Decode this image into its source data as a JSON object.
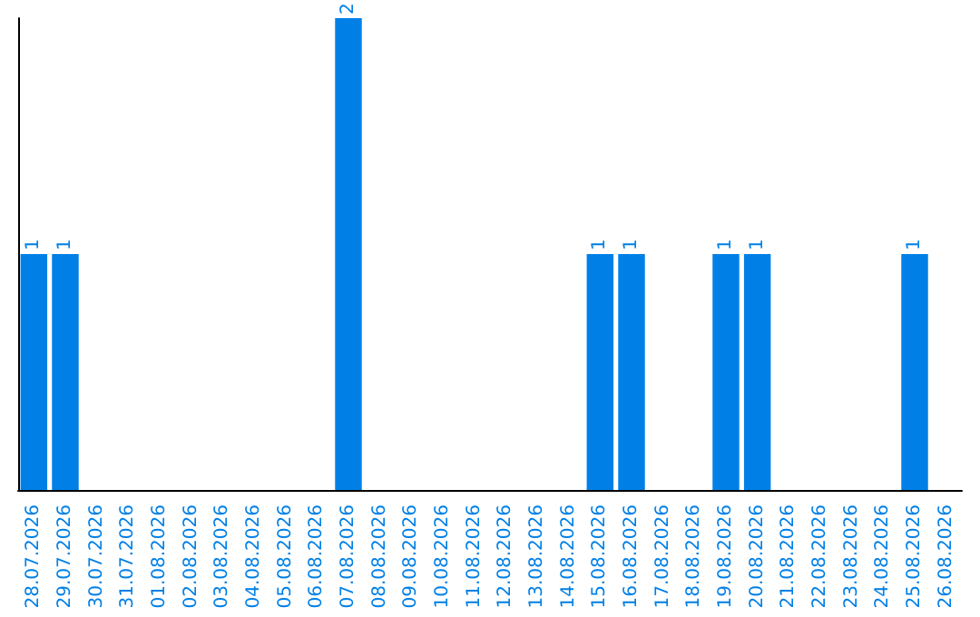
{
  "chart_data": {
    "type": "bar",
    "categories": [
      "28.07.2026",
      "29.07.2026",
      "30.07.2026",
      "31.07.2026",
      "01.08.2026",
      "02.08.2026",
      "03.08.2026",
      "04.08.2026",
      "05.08.2026",
      "06.08.2026",
      "07.08.2026",
      "08.08.2026",
      "09.08.2026",
      "10.08.2026",
      "11.08.2026",
      "12.08.2026",
      "13.08.2026",
      "14.08.2026",
      "15.08.2026",
      "16.08.2026",
      "17.08.2026",
      "18.08.2026",
      "19.08.2026",
      "20.08.2026",
      "21.08.2026",
      "22.08.2026",
      "23.08.2026",
      "24.08.2026",
      "25.08.2026",
      "26.08.2026"
    ],
    "values": [
      1,
      1,
      0,
      0,
      0,
      0,
      0,
      0,
      0,
      0,
      2,
      0,
      0,
      0,
      0,
      0,
      0,
      0,
      1,
      1,
      0,
      0,
      1,
      1,
      0,
      0,
      0,
      0,
      1,
      0
    ],
    "value_labels": [
      "1",
      "1",
      null,
      null,
      null,
      null,
      null,
      null,
      null,
      null,
      "2",
      null,
      null,
      null,
      null,
      null,
      null,
      null,
      "1",
      "1",
      null,
      null,
      "1",
      "1",
      null,
      null,
      null,
      null,
      "1",
      null
    ],
    "color": "#0080e6"
  }
}
